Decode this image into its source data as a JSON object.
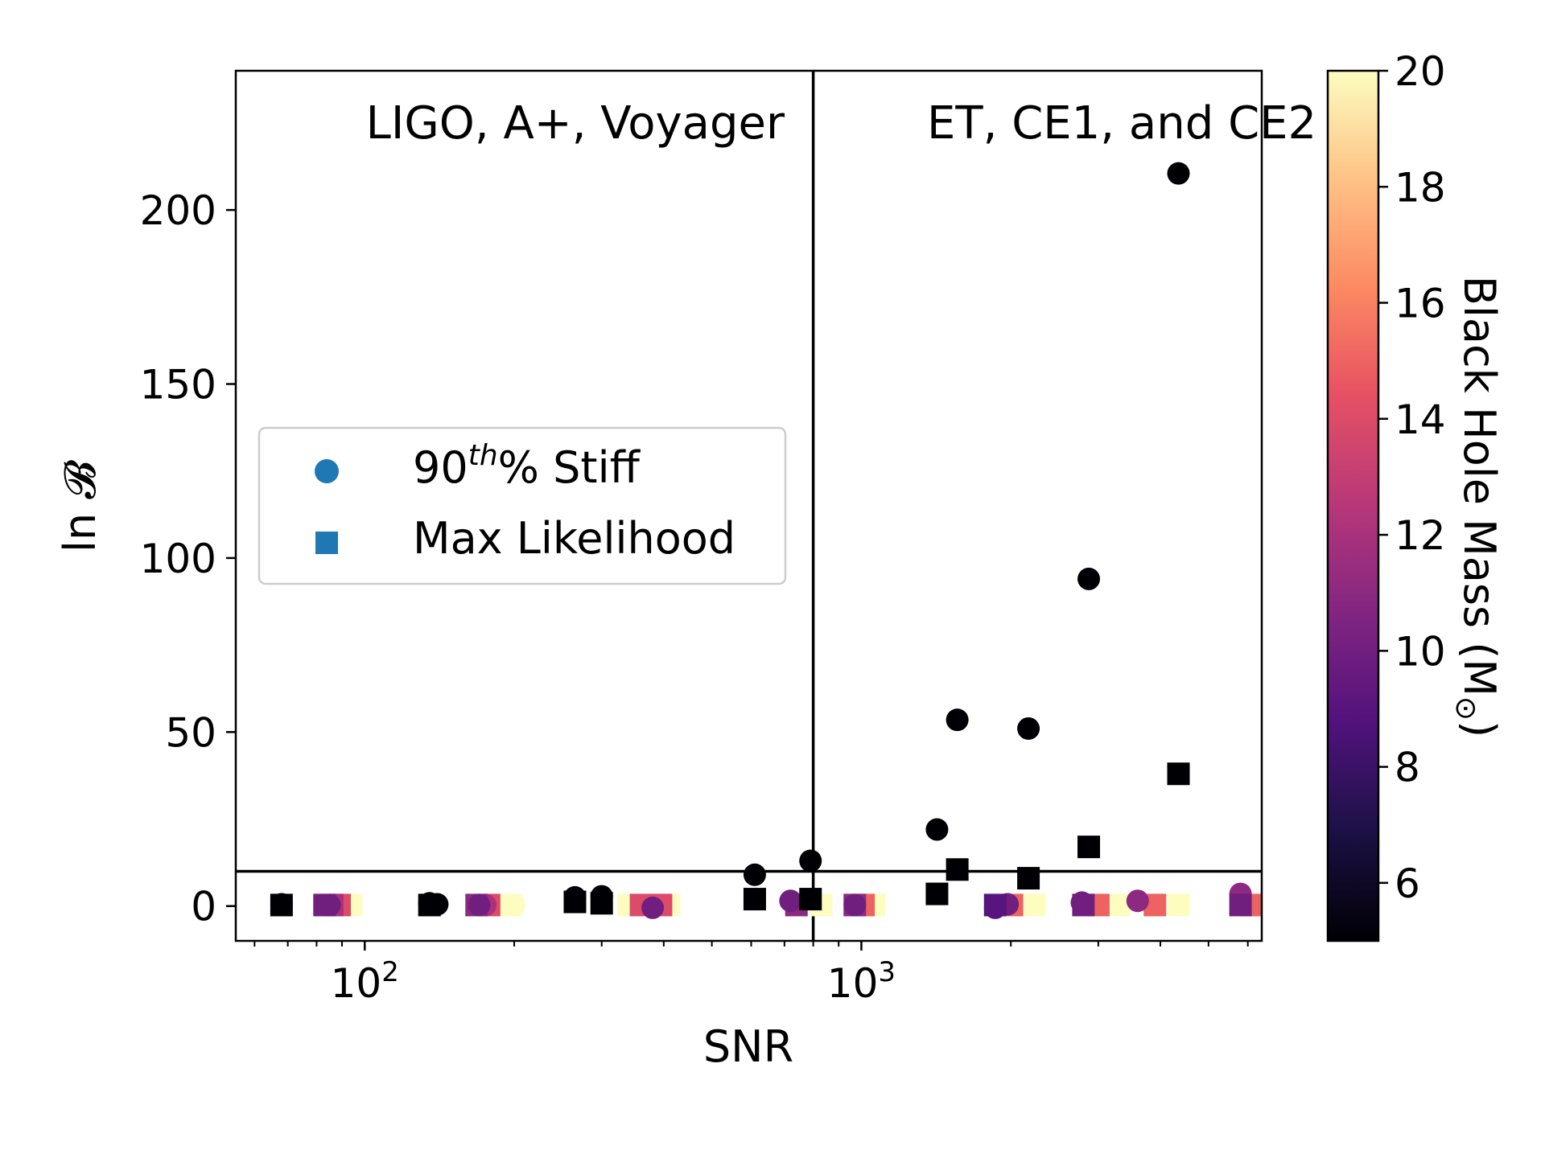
{
  "chart_data": {
    "type": "scatter",
    "title": "",
    "xlabel": "SNR",
    "ylabel": "ln 𝓑",
    "xscale": "log",
    "xlim": [
      55,
      6400
    ],
    "ylim": [
      -10,
      240
    ],
    "x_ticks": [
      {
        "value": 100,
        "base": "10",
        "exp": "2"
      },
      {
        "value": 1000,
        "base": "10",
        "exp": "3"
      }
    ],
    "y_ticks": [
      0,
      50,
      100,
      150,
      200
    ],
    "grid": false,
    "region_labels": {
      "left": "LIGO, A+, Voyager",
      "right": "ET, CE1, and CE2"
    },
    "vertical_line_x": 800,
    "horizontal_line_y": 10,
    "legend": {
      "placement": "center-left",
      "entries": [
        {
          "marker": "circle",
          "label_main": "90",
          "label_sup": "th",
          "label_rest": "% Stiff",
          "color": "#1f77b4"
        },
        {
          "marker": "square",
          "label": "Max Likelihood",
          "color": "#1f77b4"
        }
      ]
    },
    "colorbar": {
      "label": "Black Hole Mass (M",
      "label_sub": "⊙",
      "label_end": ")",
      "colormap": "magma",
      "range": [
        5,
        20
      ],
      "ticks": [
        6,
        8,
        10,
        12,
        14,
        16,
        18,
        20
      ]
    },
    "series": [
      {
        "name": "90th% Stiff",
        "marker": "circle",
        "points": [
          {
            "x": 68,
            "y": 0.5,
            "mass": 5
          },
          {
            "x": 135,
            "y": 0.8,
            "mass": 5
          },
          {
            "x": 140,
            "y": 0.5,
            "mass": 5
          },
          {
            "x": 265,
            "y": 2.5,
            "mass": 5
          },
          {
            "x": 300,
            "y": 2.8,
            "mass": 5
          },
          {
            "x": 610,
            "y": 9,
            "mass": 5
          },
          {
            "x": 790,
            "y": 13,
            "mass": 5
          },
          {
            "x": 1420,
            "y": 22,
            "mass": 5
          },
          {
            "x": 1560,
            "y": 53.5,
            "mass": 5
          },
          {
            "x": 2170,
            "y": 51,
            "mass": 5
          },
          {
            "x": 2870,
            "y": 94,
            "mass": 5
          },
          {
            "x": 4350,
            "y": 210.5,
            "mass": 5
          },
          {
            "x": 85,
            "y": 0.3,
            "mass": 10
          },
          {
            "x": 88,
            "y": 0.3,
            "mass": 14
          },
          {
            "x": 92,
            "y": 0.3,
            "mass": 20
          },
          {
            "x": 170,
            "y": 0.3,
            "mass": 10
          },
          {
            "x": 175,
            "y": 0.3,
            "mass": 12
          },
          {
            "x": 182,
            "y": 0.3,
            "mass": 20
          },
          {
            "x": 200,
            "y": 0.3,
            "mass": 20
          },
          {
            "x": 380,
            "y": -0.5,
            "mass": 10
          },
          {
            "x": 390,
            "y": 0.3,
            "mass": 14
          },
          {
            "x": 720,
            "y": 1.5,
            "mass": 10
          },
          {
            "x": 970,
            "y": 0.3,
            "mass": 10
          },
          {
            "x": 1860,
            "y": -0.5,
            "mass": 9
          },
          {
            "x": 1970,
            "y": 0.5,
            "mass": 10
          },
          {
            "x": 2780,
            "y": 1,
            "mass": 10
          },
          {
            "x": 3600,
            "y": 1.5,
            "mass": 11
          },
          {
            "x": 5800,
            "y": 3.5,
            "mass": 11
          }
        ]
      },
      {
        "name": "Max Likelihood",
        "marker": "square",
        "points": [
          {
            "x": 68,
            "y": 0.3,
            "mass": 5
          },
          {
            "x": 135,
            "y": 0.3,
            "mass": 5
          },
          {
            "x": 265,
            "y": 1.2,
            "mass": 5
          },
          {
            "x": 300,
            "y": 0.8,
            "mass": 5
          },
          {
            "x": 610,
            "y": 2,
            "mass": 5
          },
          {
            "x": 790,
            "y": 2,
            "mass": 5
          },
          {
            "x": 1420,
            "y": 3.5,
            "mass": 5
          },
          {
            "x": 1560,
            "y": 10.5,
            "mass": 5
          },
          {
            "x": 2170,
            "y": 8,
            "mass": 5
          },
          {
            "x": 2870,
            "y": 17,
            "mass": 5
          },
          {
            "x": 4350,
            "y": 38,
            "mass": 5
          },
          {
            "x": 83,
            "y": 0.3,
            "mass": 10
          },
          {
            "x": 86,
            "y": 0.3,
            "mass": 12
          },
          {
            "x": 89,
            "y": 0.3,
            "mass": 14
          },
          {
            "x": 94,
            "y": 0.3,
            "mass": 20
          },
          {
            "x": 168,
            "y": 0.3,
            "mass": 11
          },
          {
            "x": 178,
            "y": 0.3,
            "mass": 14
          },
          {
            "x": 188,
            "y": 0.3,
            "mass": 20
          },
          {
            "x": 196,
            "y": 0.3,
            "mass": 20
          },
          {
            "x": 340,
            "y": 0.3,
            "mass": 20
          },
          {
            "x": 360,
            "y": 0.3,
            "mass": 14
          },
          {
            "x": 395,
            "y": 0.3,
            "mass": 14
          },
          {
            "x": 410,
            "y": 0.3,
            "mass": 20
          },
          {
            "x": 740,
            "y": 0.3,
            "mass": 11
          },
          {
            "x": 830,
            "y": 0.3,
            "mass": 20
          },
          {
            "x": 970,
            "y": 0.3,
            "mass": 11
          },
          {
            "x": 1010,
            "y": 0.3,
            "mass": 15
          },
          {
            "x": 1060,
            "y": 0.3,
            "mass": 20
          },
          {
            "x": 1860,
            "y": 0.3,
            "mass": 9
          },
          {
            "x": 2010,
            "y": 0.3,
            "mass": 15
          },
          {
            "x": 2230,
            "y": 0.3,
            "mass": 20
          },
          {
            "x": 2800,
            "y": 0.3,
            "mass": 10
          },
          {
            "x": 3000,
            "y": 0.3,
            "mass": 15
          },
          {
            "x": 3300,
            "y": 0.3,
            "mass": 20
          },
          {
            "x": 3900,
            "y": 0.3,
            "mass": 15
          },
          {
            "x": 4350,
            "y": 0.3,
            "mass": 20
          },
          {
            "x": 5800,
            "y": 0.3,
            "mass": 10
          },
          {
            "x": 6050,
            "y": 0.3,
            "mass": 15
          },
          {
            "x": 6300,
            "y": 0.3,
            "mass": 20
          }
        ]
      }
    ]
  }
}
